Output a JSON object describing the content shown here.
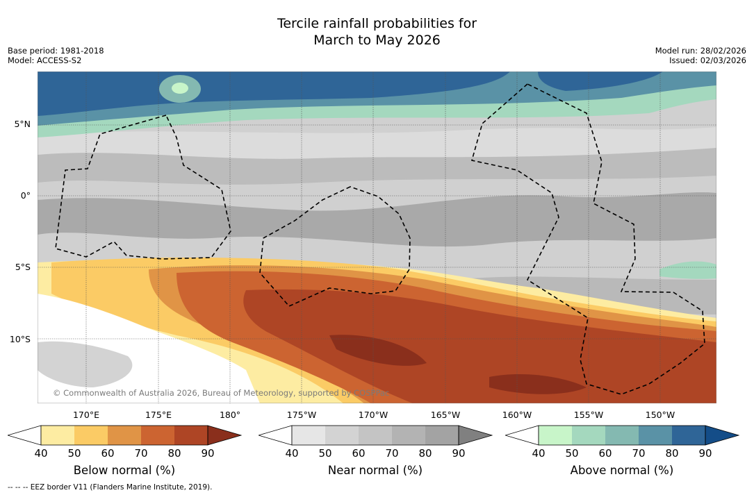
{
  "title": {
    "line1": "Tercile rainfall probabilities for",
    "line2": "March to May 2026"
  },
  "meta_left": {
    "base_period": "Base period: 1981-2018",
    "model": "Model: ACCESS-S2"
  },
  "meta_right": {
    "model_run": "Model run: 28/02/2026",
    "issued": "Issued: 02/03/2026"
  },
  "map": {
    "lat_labels": [
      "5°N",
      "0°",
      "5°S",
      "10°S"
    ],
    "lon_labels": [
      "170°E",
      "175°E",
      "180°",
      "175°W",
      "170°W",
      "165°W",
      "160°W",
      "155°W",
      "150°W"
    ],
    "copyright": "© Commonwealth of Australia 2026, Bureau of Meteorology, supported by COSPPac"
  },
  "colorbars": [
    {
      "name": "below",
      "title": "Below normal (%)",
      "ticks": [
        "40",
        "50",
        "60",
        "70",
        "80",
        "90"
      ],
      "colors": [
        "#fdeca2",
        "#fbcb65",
        "#e09446",
        "#cc6431",
        "#ae4525"
      ],
      "low_color": "#ffffff",
      "high_color": "#8a2f1c"
    },
    {
      "name": "near",
      "title": "Near normal (%)",
      "ticks": [
        "40",
        "50",
        "60",
        "70",
        "80",
        "90"
      ],
      "colors": [
        "#e6e6e6",
        "#d3d3d3",
        "#c4c4c4",
        "#b3b3b3",
        "#a3a3a3"
      ],
      "low_color": "#ffffff",
      "high_color": "#808080"
    },
    {
      "name": "above",
      "title": "Above normal (%)",
      "ticks": [
        "40",
        "50",
        "60",
        "70",
        "80",
        "90"
      ],
      "colors": [
        "#c8f5c9",
        "#a4d8be",
        "#84b9b1",
        "#5a92a6",
        "#2f6597"
      ],
      "low_color": "#ffffff",
      "high_color": "#144d88"
    }
  ],
  "footer": "--  --  -- EEZ border V11 (Flanders Marine Institute, 2019)."
}
